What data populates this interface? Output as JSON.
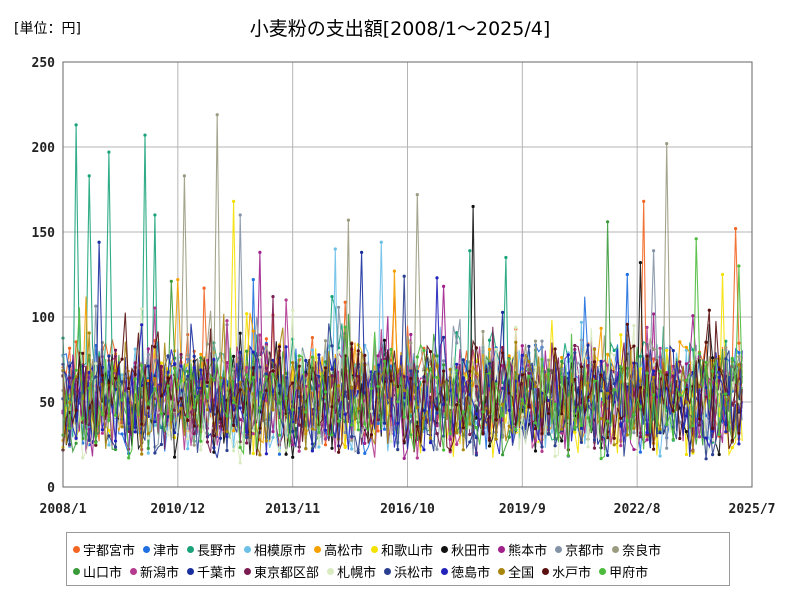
{
  "unit_label": "[単位：円]",
  "chart_data": {
    "type": "line",
    "title": "小麦粉の支出額[2008/1～2025/4]",
    "xlabel": "",
    "ylabel": "",
    "ylim": [
      0,
      250
    ],
    "y_ticks": [
      0,
      50,
      100,
      150,
      200,
      250
    ],
    "x_ticks": [
      "2008/1",
      "2010/12",
      "2013/11",
      "2016/10",
      "2019/9",
      "2022/8",
      "2025/7"
    ],
    "x_start": "2008/1",
    "x_end": "2025/7",
    "grid": true,
    "legend_position": "bottom",
    "series": [
      {
        "name": "宇都宮市",
        "color": "#f26522",
        "base": 55,
        "peaks": [
          [
            0.855,
            168
          ],
          [
            0.99,
            152
          ],
          [
            0.21,
            117
          ]
        ]
      },
      {
        "name": "津市",
        "color": "#1f6fe0",
        "base": 52,
        "peaks": [
          [
            0.28,
            122
          ],
          [
            0.83,
            125
          ]
        ]
      },
      {
        "name": "長野市",
        "color": "#1aa37a",
        "base": 58,
        "peaks": [
          [
            0.02,
            213
          ],
          [
            0.07,
            197
          ],
          [
            0.12,
            207
          ],
          [
            0.04,
            183
          ],
          [
            0.135,
            160
          ],
          [
            0.6,
            139
          ],
          [
            0.65,
            135
          ]
        ]
      },
      {
        "name": "相模原市",
        "color": "#6cc0e8",
        "base": 50,
        "peaks": [
          [
            0.47,
            144
          ],
          [
            0.4,
            140
          ]
        ]
      },
      {
        "name": "高松市",
        "color": "#f4a000",
        "base": 56,
        "peaks": [
          [
            0.17,
            122
          ],
          [
            0.49,
            127
          ]
        ]
      },
      {
        "name": "和歌山市",
        "color": "#f5e100",
        "base": 50,
        "peaks": [
          [
            0.25,
            168
          ],
          [
            0.97,
            125
          ]
        ]
      },
      {
        "name": "秋田市",
        "color": "#111111",
        "base": 48,
        "peaks": [
          [
            0.604,
            165
          ],
          [
            0.85,
            132
          ]
        ]
      },
      {
        "name": "熊本市",
        "color": "#a0208c",
        "base": 50,
        "peaks": [
          [
            0.29,
            138
          ],
          [
            0.56,
            118
          ]
        ]
      },
      {
        "name": "京都市",
        "color": "#8494a6",
        "base": 52,
        "peaks": [
          [
            0.26,
            160
          ],
          [
            0.87,
            139
          ]
        ]
      },
      {
        "name": "奈良市",
        "color": "#9b9b82",
        "base": 58,
        "peaks": [
          [
            0.225,
            219
          ],
          [
            0.18,
            183
          ],
          [
            0.89,
            202
          ],
          [
            0.52,
            172
          ],
          [
            0.42,
            157
          ]
        ]
      },
      {
        "name": "山口市",
        "color": "#3a9a3a",
        "base": 50,
        "peaks": [
          [
            0.16,
            121
          ],
          [
            0.8,
            156
          ]
        ]
      },
      {
        "name": "新潟市",
        "color": "#b33a8f",
        "base": 50,
        "peaks": [
          [
            0.33,
            110
          ]
        ]
      },
      {
        "name": "千葉市",
        "color": "#1a2f9e",
        "base": 50,
        "peaks": [
          [
            0.052,
            144
          ],
          [
            0.44,
            138
          ]
        ]
      },
      {
        "name": "東京都区部",
        "color": "#7a1b52",
        "base": 52,
        "peaks": [
          [
            0.31,
            112
          ]
        ]
      },
      {
        "name": "札幌市",
        "color": "#d8ebc0",
        "base": 48,
        "peaks": [
          [
            0.34,
            104
          ]
        ]
      },
      {
        "name": "浜松市",
        "color": "#2b3f8f",
        "base": 50,
        "peaks": [
          [
            0.5,
            124
          ]
        ]
      },
      {
        "name": "徳島市",
        "color": "#2222bb",
        "base": 50,
        "peaks": [
          [
            0.55,
            123
          ]
        ]
      },
      {
        "name": "全国",
        "color": "#a8860e",
        "base": 52,
        "peaks": []
      },
      {
        "name": "水戸市",
        "color": "#5a1010",
        "base": 52,
        "peaks": [
          [
            0.95,
            104
          ]
        ]
      },
      {
        "name": "甲府市",
        "color": "#4cbb3c",
        "base": 50,
        "peaks": [
          [
            0.93,
            146
          ],
          [
            0.995,
            130
          ]
        ]
      }
    ]
  }
}
